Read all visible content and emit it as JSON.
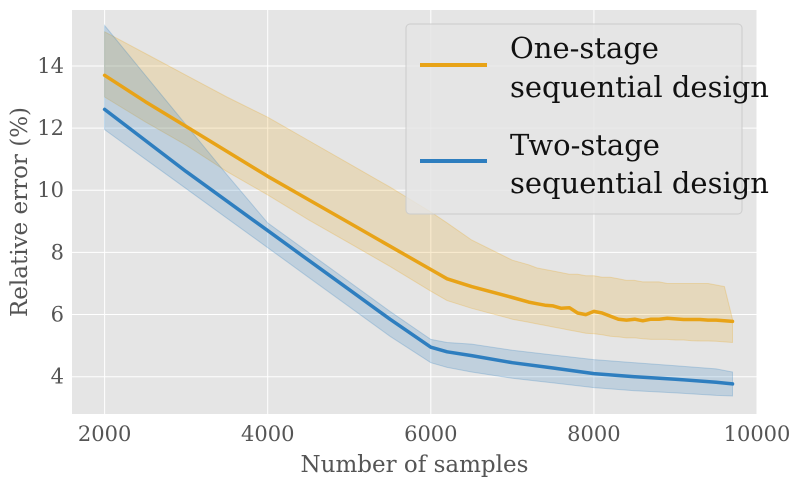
{
  "chart_data": {
    "type": "line",
    "title": "",
    "xlabel": "Number of samples",
    "ylabel": "Relative error (%)",
    "xlim": [
      1600,
      10000
    ],
    "ylim": [
      2.8,
      15.8
    ],
    "xticks": [
      2000,
      4000,
      6000,
      8000,
      10000
    ],
    "yticks": [
      4,
      6,
      8,
      10,
      12,
      14
    ],
    "grid": true,
    "legend": "top-right",
    "series": [
      {
        "name": "One-stage sequential design",
        "legend_lines": [
          "One-stage",
          "sequential design"
        ],
        "color": "#E8A317",
        "x": [
          2000,
          2500,
          3000,
          3500,
          4000,
          4500,
          5000,
          5500,
          6000,
          6200,
          6500,
          7000,
          7200,
          7300,
          7400,
          7500,
          7600,
          7700,
          7800,
          7900,
          8000,
          8100,
          8200,
          8300,
          8400,
          8500,
          8600,
          8700,
          8800,
          8900,
          9000,
          9100,
          9200,
          9300,
          9400,
          9500,
          9600,
          9700
        ],
        "values": [
          13.7,
          12.85,
          12.05,
          11.25,
          10.45,
          9.7,
          8.95,
          8.2,
          7.45,
          7.15,
          6.9,
          6.55,
          6.4,
          6.35,
          6.3,
          6.28,
          6.2,
          6.22,
          6.05,
          6.0,
          6.1,
          6.05,
          5.95,
          5.85,
          5.82,
          5.85,
          5.8,
          5.85,
          5.85,
          5.88,
          5.86,
          5.84,
          5.84,
          5.84,
          5.82,
          5.82,
          5.8,
          5.78
        ],
        "lower": [
          13.0,
          12.2,
          11.45,
          10.6,
          9.85,
          9.05,
          8.3,
          7.55,
          6.75,
          6.45,
          6.2,
          5.85,
          5.75,
          5.7,
          5.65,
          5.6,
          5.55,
          5.5,
          5.45,
          5.4,
          5.38,
          5.35,
          5.3,
          5.28,
          5.25,
          5.25,
          5.22,
          5.2,
          5.2,
          5.2,
          5.18,
          5.18,
          5.16,
          5.15,
          5.15,
          5.14,
          5.12,
          5.1
        ],
        "upper": [
          15.1,
          14.4,
          13.7,
          13.0,
          12.35,
          11.6,
          10.85,
          10.1,
          9.3,
          8.95,
          8.4,
          7.75,
          7.6,
          7.5,
          7.45,
          7.4,
          7.35,
          7.3,
          7.3,
          7.25,
          7.25,
          7.2,
          7.2,
          7.15,
          7.1,
          7.1,
          7.05,
          7.05,
          7.05,
          7.0,
          7.0,
          7.0,
          7.0,
          7.0,
          7.0,
          6.95,
          6.9,
          5.85
        ]
      },
      {
        "name": "Two-stage sequential design",
        "legend_lines": [
          "Two-stage",
          "sequential design"
        ],
        "color": "#2E7EBF",
        "x": [
          2000,
          2500,
          3000,
          3500,
          4000,
          4500,
          5000,
          5500,
          6000,
          6200,
          6500,
          7000,
          7500,
          8000,
          8500,
          9000,
          9500,
          9700
        ],
        "values": [
          12.6,
          11.6,
          10.6,
          9.65,
          8.7,
          7.75,
          6.8,
          5.85,
          4.95,
          4.8,
          4.68,
          4.45,
          4.28,
          4.1,
          4.0,
          3.92,
          3.82,
          3.77
        ],
        "lower": [
          11.95,
          11.0,
          10.05,
          9.1,
          8.15,
          7.2,
          6.25,
          5.3,
          4.45,
          4.3,
          4.15,
          3.95,
          3.8,
          3.65,
          3.55,
          3.48,
          3.4,
          3.38
        ],
        "upper": [
          15.3,
          13.7,
          12.1,
          10.5,
          8.95,
          8.0,
          7.05,
          6.1,
          5.2,
          5.1,
          5.05,
          4.85,
          4.7,
          4.55,
          4.45,
          4.35,
          4.25,
          4.15
        ]
      }
    ]
  }
}
